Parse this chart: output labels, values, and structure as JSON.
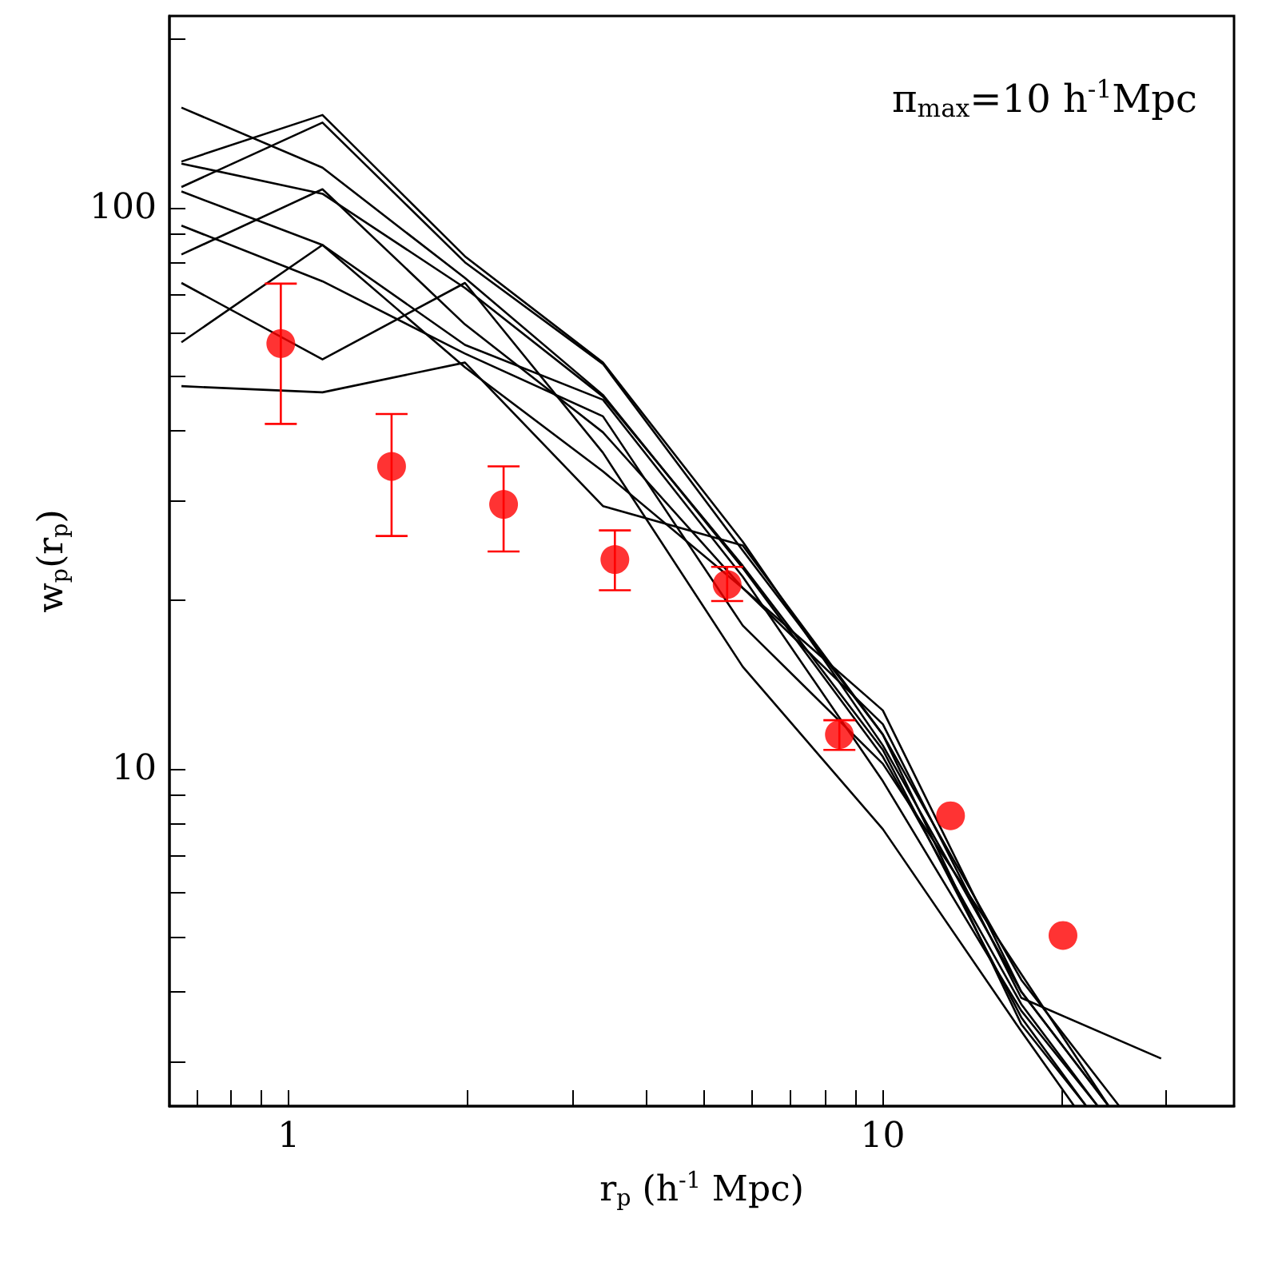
{
  "chart_data": {
    "type": "line",
    "xlabel": "r$_{p}$ (h$^{-1}$ Mpc)",
    "ylabel": "w$_{p}$(r$_{p}$)",
    "annotations": [
      "π$_{max}$=10 h$^{-1}$Mpc"
    ],
    "log": "xy",
    "grid": false,
    "marker": "none",
    "line_style": "solid",
    "xlim": [
      0.63,
      39
    ],
    "ylim": [
      2.5,
      220
    ],
    "xticks": [
      {
        "value": 0.7,
        "label": null
      },
      {
        "value": 0.8,
        "label": null
      },
      {
        "value": 0.9,
        "label": null
      },
      1,
      {
        "value": 2,
        "label": null
      },
      {
        "value": 3,
        "label": null
      },
      {
        "value": 4,
        "label": null
      },
      {
        "value": 5,
        "label": null
      },
      {
        "value": 6,
        "label": null
      },
      {
        "value": 7,
        "label": null
      },
      {
        "value": 8,
        "label": null
      },
      {
        "value": 9,
        "label": null
      },
      10,
      {
        "value": 20,
        "label": null
      },
      {
        "value": 30,
        "label": null
      }
    ],
    "yticks": [
      {
        "value": 3,
        "label": null
      },
      {
        "value": 4,
        "label": null
      },
      {
        "value": 5,
        "label": null
      },
      {
        "value": 6,
        "label": null
      },
      {
        "value": 7,
        "label": null
      },
      {
        "value": 8,
        "label": null
      },
      {
        "value": 9,
        "label": null
      },
      10,
      {
        "value": 20,
        "label": null
      },
      {
        "value": 30,
        "label": null
      },
      {
        "value": 40,
        "label": null
      },
      {
        "value": 50,
        "label": null
      },
      {
        "value": 60,
        "label": null
      },
      {
        "value": 70,
        "label": null
      },
      {
        "value": 80,
        "label": null
      },
      {
        "value": 90,
        "label": null
      },
      100,
      {
        "value": 200,
        "label": null
      }
    ],
    "series": [
      {
        "color": "#000000",
        "x": [
          0.66,
          1.14,
          1.98,
          3.38,
          5.81,
          10,
          17.1,
          23
        ],
        "values": [
          151,
          118,
          75,
          46.4,
          22.8,
          10.5,
          3.8,
          2.5
        ]
      },
      {
        "color": "#000000",
        "x": [
          0.66,
          1.14,
          1.98,
          3.38,
          5.81,
          10,
          17.1,
          24
        ],
        "values": [
          121,
          146.5,
          82,
          53,
          25.4,
          11,
          4.0,
          2.5
        ]
      },
      {
        "color": "#000000",
        "x": [
          0.66,
          1.14,
          1.98,
          3.38,
          5.81,
          10,
          17.1,
          25
        ],
        "values": [
          109,
          142,
          80,
          52.7,
          24.5,
          11.5,
          4.2,
          2.5
        ]
      },
      {
        "color": "#000000",
        "x": [
          0.66,
          1.14,
          1.98,
          3.38,
          5.81,
          10,
          17.1,
          22
        ],
        "values": [
          120,
          106,
          72,
          46.1,
          23,
          10.8,
          3.6,
          2.5
        ]
      },
      {
        "color": "#000000",
        "x": [
          0.66,
          1.14,
          1.98,
          3.38,
          5.81,
          10,
          17.1,
          23
        ],
        "values": [
          107,
          85.9,
          57,
          45.5,
          22,
          9.5,
          3.7,
          2.5
        ]
      },
      {
        "color": "#000000",
        "x": [
          0.66,
          1.14,
          1.98,
          3.38,
          5.81,
          10,
          17.1,
          24
        ],
        "values": [
          93,
          74,
          55,
          42.5,
          18,
          10.2,
          4.3,
          2.5
        ]
      },
      {
        "color": "#000000",
        "x": [
          0.66,
          1.14,
          1.98,
          3.38,
          5.81,
          10,
          17.1,
          24
        ],
        "values": [
          82.6,
          108,
          62,
          39.8,
          21,
          12.7,
          4.0,
          2.5
        ]
      },
      {
        "color": "#000000",
        "x": [
          0.66,
          1.14,
          1.98,
          3.38,
          5.81,
          10,
          17.1,
          21
        ],
        "values": [
          73.5,
          53.7,
          73.5,
          36.6,
          15.2,
          7.8,
          3.4,
          2.5
        ]
      },
      {
        "color": "#000000",
        "x": [
          0.66,
          1.14,
          1.98,
          3.38,
          5.81,
          10,
          17.1,
          29.4
        ],
        "values": [
          57.6,
          85.9,
          52,
          33.9,
          21,
          12,
          3.9,
          3.04
        ]
      },
      {
        "color": "#000000",
        "x": [
          0.66,
          1.14,
          1.98,
          3.38,
          5.81,
          10,
          17.1,
          22
        ],
        "values": [
          48.1,
          46.9,
          53,
          29.4,
          25,
          11.5,
          3.5,
          2.5
        ]
      },
      {
        "type": "scatter",
        "marker": "circle",
        "color": "#ff0000",
        "x": [
          0.97,
          1.49,
          2.3,
          3.54,
          5.47,
          8.45,
          13,
          20.1
        ],
        "values": [
          57.3,
          34.6,
          29.6,
          23.6,
          21.3,
          11.5,
          8.24,
          5.04
        ],
        "errors": [
          [
            41.2,
            73.3
          ],
          [
            26,
            42.9
          ],
          [
            24.4,
            34.6
          ],
          [
            20.8,
            26.6
          ],
          [
            19.9,
            22.9
          ],
          [
            10.8,
            12.2
          ],
          null,
          null
        ]
      }
    ]
  }
}
